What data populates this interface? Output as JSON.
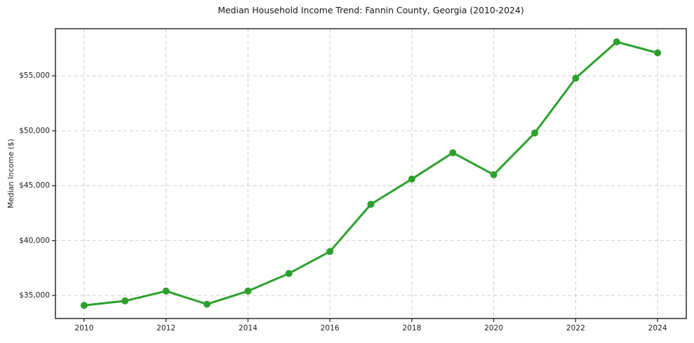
{
  "chart_data": {
    "type": "line",
    "title": "Median Household Income Trend: Fannin County, Georgia (2010-2024)",
    "xlabel": "",
    "ylabel": "Median Income ($)",
    "x": [
      2010,
      2011,
      2012,
      2013,
      2014,
      2015,
      2016,
      2017,
      2018,
      2019,
      2020,
      2021,
      2022,
      2023,
      2024
    ],
    "values": [
      34100,
      34500,
      35400,
      34200,
      35400,
      37000,
      39000,
      43300,
      45600,
      48000,
      46000,
      49800,
      54800,
      58100,
      57100
    ],
    "xlim": [
      2009.3,
      2024.7
    ],
    "ylim": [
      32900,
      59300
    ],
    "xticks": {
      "values": [
        2010,
        2012,
        2014,
        2016,
        2018,
        2020,
        2022,
        2024
      ],
      "labels": [
        "2010",
        "2012",
        "2014",
        "2016",
        "2018",
        "2020",
        "2022",
        "2024"
      ]
    },
    "yticks": {
      "values": [
        35000,
        40000,
        45000,
        50000,
        55000
      ],
      "labels": [
        "$35,000",
        "$40,000",
        "$45,000",
        "$50,000",
        "$55,000"
      ]
    },
    "grid": true,
    "grid_style": "dashed",
    "legend": false,
    "line_color": "#2ca02c",
    "marker": "circle",
    "grid_color": "#cdcdcd",
    "frame_color": "#1c1c1c",
    "background_color": "#ffffff"
  }
}
